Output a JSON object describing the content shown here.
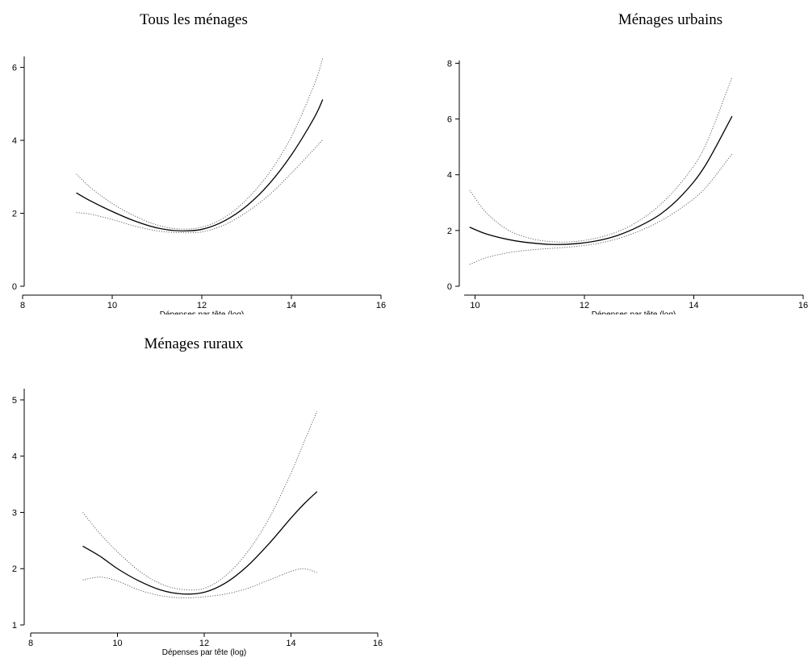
{
  "chart_data": [
    {
      "type": "line",
      "title": "Tous les ménages",
      "xlabel": "Dépenses par tête (log)",
      "ylabel": "",
      "xlim": [
        8,
        16
      ],
      "ylim": [
        0,
        6.3
      ],
      "xticks": [
        8,
        10,
        12,
        14,
        16
      ],
      "yticks": [
        0,
        2,
        4,
        6
      ],
      "grid": false,
      "series": [
        {
          "style": "solid",
          "color": "#000000",
          "x": [
            9.2,
            9.5,
            10,
            10.5,
            11,
            11.5,
            12,
            12.5,
            13,
            13.5,
            14,
            14.5,
            14.7
          ],
          "y": [
            2.56,
            2.35,
            2.05,
            1.79,
            1.6,
            1.52,
            1.56,
            1.79,
            2.2,
            2.8,
            3.6,
            4.6,
            5.12
          ]
        },
        {
          "style": "dotted",
          "color": "#555555",
          "x": [
            9.2,
            9.5,
            10,
            10.5,
            11,
            11.5,
            12,
            12.5,
            13,
            13.5,
            14,
            14.5,
            14.7
          ],
          "y": [
            3.08,
            2.72,
            2.27,
            1.93,
            1.68,
            1.57,
            1.62,
            1.88,
            2.38,
            3.1,
            4.1,
            5.5,
            6.25
          ]
        },
        {
          "style": "dotted",
          "color": "#555555",
          "x": [
            9.2,
            9.5,
            10,
            10.5,
            11,
            11.5,
            12,
            12.5,
            13,
            13.5,
            14,
            14.5,
            14.7
          ],
          "y": [
            2.02,
            1.98,
            1.83,
            1.65,
            1.52,
            1.47,
            1.49,
            1.68,
            2.03,
            2.5,
            3.1,
            3.75,
            4.02
          ]
        }
      ]
    },
    {
      "type": "line",
      "title": "Ménages urbains",
      "xlabel": "Dépenses par tête (log)",
      "ylabel": "",
      "xlim": [
        9.8,
        16
      ],
      "ylim": [
        0,
        8.1
      ],
      "xticks": [
        10,
        12,
        14,
        16
      ],
      "yticks": [
        0,
        2,
        4,
        6,
        8
      ],
      "grid": false,
      "series": [
        {
          "style": "solid",
          "color": "#000000",
          "x": [
            9.9,
            10.2,
            10.6,
            11,
            11.4,
            11.8,
            12.2,
            12.6,
            13,
            13.4,
            13.8,
            14.2,
            14.7
          ],
          "y": [
            2.12,
            1.88,
            1.68,
            1.56,
            1.5,
            1.52,
            1.62,
            1.82,
            2.15,
            2.6,
            3.3,
            4.3,
            6.1
          ]
        },
        {
          "style": "dotted",
          "color": "#555555",
          "x": [
            9.9,
            10.2,
            10.6,
            11,
            11.4,
            11.8,
            12.2,
            12.6,
            13,
            13.4,
            13.8,
            14.2,
            14.7
          ],
          "y": [
            3.45,
            2.65,
            2.02,
            1.72,
            1.6,
            1.6,
            1.72,
            1.95,
            2.35,
            2.95,
            3.8,
            5.0,
            7.5
          ]
        },
        {
          "style": "dotted",
          "color": "#555555",
          "x": [
            9.9,
            10.2,
            10.6,
            11,
            11.4,
            11.8,
            12.2,
            12.6,
            13,
            13.4,
            13.8,
            14.2,
            14.7
          ],
          "y": [
            0.78,
            1.02,
            1.2,
            1.3,
            1.36,
            1.42,
            1.52,
            1.7,
            1.98,
            2.35,
            2.85,
            3.5,
            4.75
          ]
        }
      ]
    },
    {
      "type": "line",
      "title": "Ménages ruraux",
      "xlabel": "Dépenses par tête (log)",
      "ylabel": "",
      "xlim": [
        8,
        16
      ],
      "ylim": [
        1,
        5.2
      ],
      "xticks": [
        8,
        10,
        12,
        14,
        16
      ],
      "yticks": [
        1,
        2,
        3,
        4,
        5
      ],
      "grid": false,
      "series": [
        {
          "style": "solid",
          "color": "#000000",
          "x": [
            9.2,
            9.6,
            10,
            10.5,
            11,
            11.5,
            12,
            12.5,
            13,
            13.5,
            14,
            14.3,
            14.6
          ],
          "y": [
            2.4,
            2.22,
            2.0,
            1.78,
            1.62,
            1.55,
            1.58,
            1.75,
            2.05,
            2.45,
            2.9,
            3.15,
            3.37
          ]
        },
        {
          "style": "dotted",
          "color": "#555555",
          "x": [
            9.2,
            9.6,
            10,
            10.5,
            11,
            11.5,
            12,
            12.5,
            13,
            13.5,
            14,
            14.3,
            14.6
          ],
          "y": [
            3.0,
            2.62,
            2.3,
            1.96,
            1.73,
            1.63,
            1.65,
            1.88,
            2.3,
            2.9,
            3.7,
            4.25,
            4.8
          ]
        },
        {
          "style": "dotted",
          "color": "#555555",
          "x": [
            9.2,
            9.6,
            10,
            10.5,
            11,
            11.5,
            12,
            12.5,
            13,
            13.5,
            14,
            14.3,
            14.6
          ],
          "y": [
            1.8,
            1.85,
            1.78,
            1.62,
            1.52,
            1.48,
            1.5,
            1.55,
            1.65,
            1.8,
            1.95,
            2.0,
            1.93
          ]
        }
      ]
    }
  ]
}
